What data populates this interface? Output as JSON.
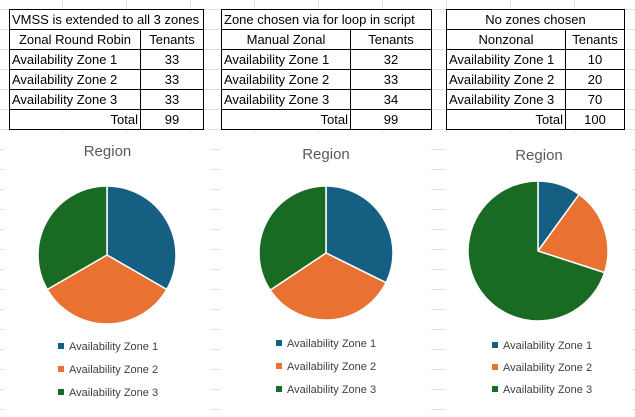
{
  "colors": {
    "zone1": "#156082",
    "zone2": "#E97132",
    "zone3": "#196B24"
  },
  "tables": [
    {
      "caption": "VMSS is extended to all 3 zones",
      "header": [
        "Zonal Round Robin",
        "Tenants"
      ],
      "rows": [
        {
          "label": "Availability Zone 1",
          "value": "33"
        },
        {
          "label": "Availability Zone 2",
          "value": "33"
        },
        {
          "label": "Availability Zone 3",
          "value": "33"
        }
      ],
      "total_label": "Total",
      "total_value": "99"
    },
    {
      "caption": "Zone chosen via for loop in script",
      "header": [
        "Manual Zonal",
        "Tenants"
      ],
      "rows": [
        {
          "label": "Availability Zone 1",
          "value": "32"
        },
        {
          "label": "Availability Zone 2",
          "value": "33"
        },
        {
          "label": "Availability Zone 3",
          "value": "34"
        }
      ],
      "total_label": "Total",
      "total_value": "99"
    },
    {
      "caption": "No zones chosen",
      "header": [
        "Nonzonal",
        "Tenants"
      ],
      "rows": [
        {
          "label": "Availability Zone 1",
          "value": "10"
        },
        {
          "label": "Availability Zone 2",
          "value": "20"
        },
        {
          "label": "Availability Zone 3",
          "value": "70"
        }
      ],
      "total_label": "Total",
      "total_value": "100"
    }
  ],
  "chart_data": [
    {
      "type": "pie",
      "title": "Region",
      "categories": [
        "Availability Zone 1",
        "Availability Zone 2",
        "Availability Zone 3"
      ],
      "values": [
        33,
        33,
        33
      ],
      "legend": "bottom"
    },
    {
      "type": "pie",
      "title": "Region",
      "categories": [
        "Availability Zone 1",
        "Availability Zone 2",
        "Availability Zone 3"
      ],
      "values": [
        32,
        33,
        34
      ],
      "legend": "bottom"
    },
    {
      "type": "pie",
      "title": "Region",
      "categories": [
        "Availability Zone 1",
        "Availability Zone 2",
        "Availability Zone 3"
      ],
      "values": [
        10,
        20,
        70
      ],
      "legend": "bottom"
    }
  ]
}
